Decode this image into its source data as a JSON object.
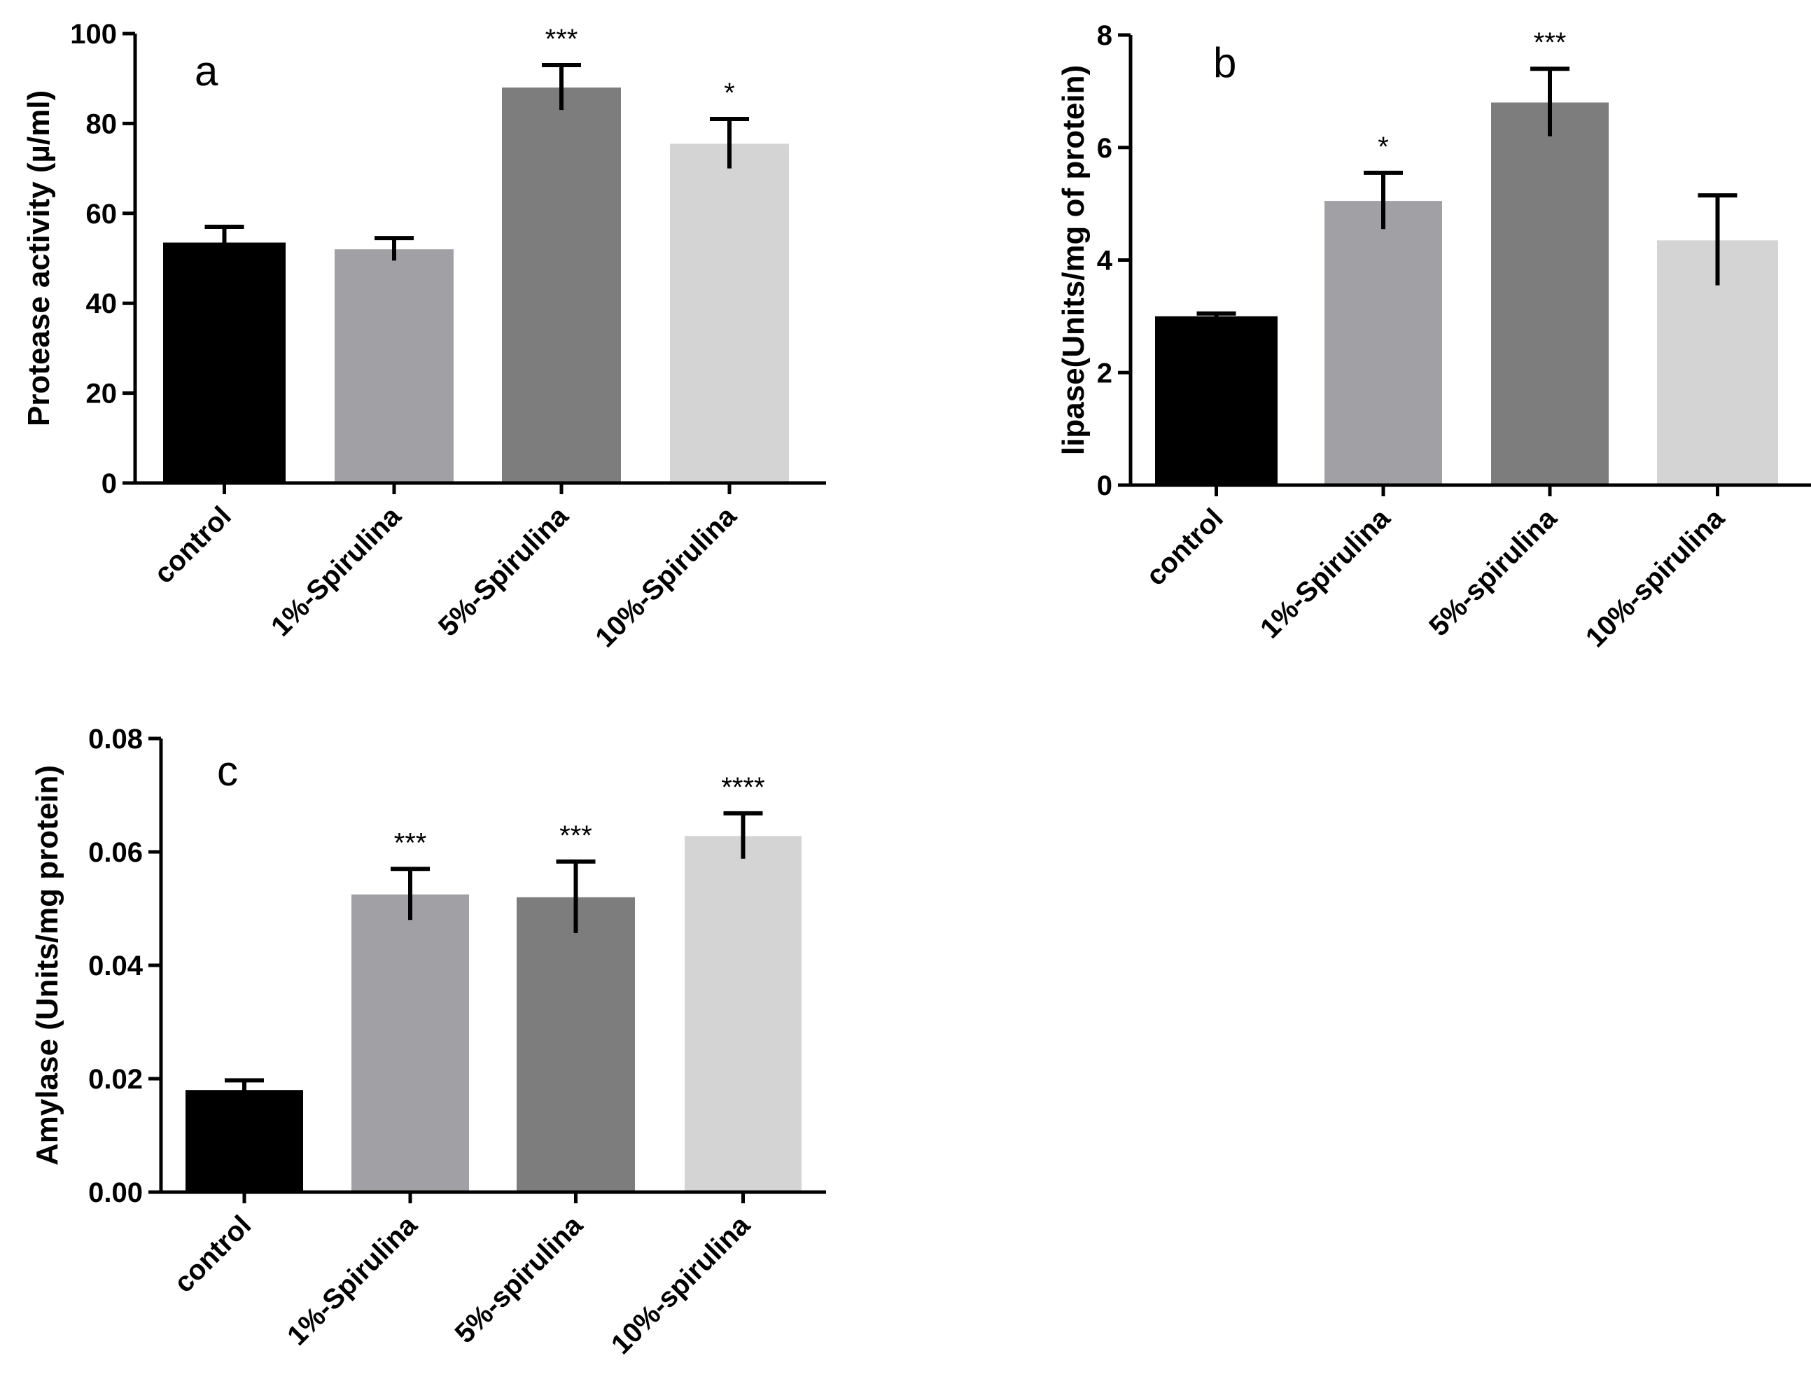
{
  "chart_data": [
    {
      "type": "bar",
      "panel": "a",
      "ylabel": "Protease activity (µ/ml)",
      "ylim": [
        0,
        100
      ],
      "yticks": [
        0,
        20,
        40,
        60,
        80,
        100
      ],
      "ytick_labels": [
        "0",
        "20",
        "40",
        "60",
        "80",
        "100"
      ],
      "categories": [
        "control",
        "1%-Spirulina",
        "5%-Spirulina",
        "10%-Spirulina"
      ],
      "values": [
        53.5,
        52,
        88,
        75.5
      ],
      "errors": [
        3.5,
        2.5,
        5,
        5.5
      ],
      "significance": [
        "",
        "",
        "***",
        "*"
      ],
      "colors": [
        "#000000",
        "#a0a0a5",
        "#7d7d7d",
        "#d4d4d4"
      ]
    },
    {
      "type": "bar",
      "panel": "b",
      "ylabel": "lipase(Units/mg of protein)",
      "ylim": [
        0,
        8
      ],
      "yticks": [
        0,
        2,
        4,
        6,
        8
      ],
      "ytick_labels": [
        "0",
        "2",
        "4",
        "6",
        "8"
      ],
      "categories": [
        "control",
        "1%-Spirulina",
        "5%-spirulina",
        "10%-spirulina"
      ],
      "values": [
        3.0,
        5.05,
        6.8,
        4.35
      ],
      "errors": [
        0.05,
        0.5,
        0.6,
        0.8
      ],
      "significance": [
        "",
        "*",
        "***",
        ""
      ],
      "colors": [
        "#000000",
        "#a0a0a5",
        "#7d7d7d",
        "#d4d4d4"
      ]
    },
    {
      "type": "bar",
      "panel": "c",
      "ylabel": "Amylase (Units/mg protein)",
      "ylim": [
        0,
        0.08
      ],
      "yticks": [
        0,
        0.02,
        0.04,
        0.06,
        0.08
      ],
      "ytick_labels": [
        "0.00",
        "0.02",
        "0.04",
        "0.06",
        "0.08"
      ],
      "categories": [
        "control",
        "1%-Spirulina",
        "5%-spirulina",
        "10%-spirulina"
      ],
      "values": [
        0.018,
        0.0525,
        0.052,
        0.0628
      ],
      "errors": [
        0.0017,
        0.0045,
        0.0063,
        0.004
      ],
      "significance": [
        "",
        "***",
        "***",
        "****"
      ],
      "colors": [
        "#000000",
        "#a0a0a5",
        "#7d7d7d",
        "#d4d4d4"
      ]
    }
  ]
}
